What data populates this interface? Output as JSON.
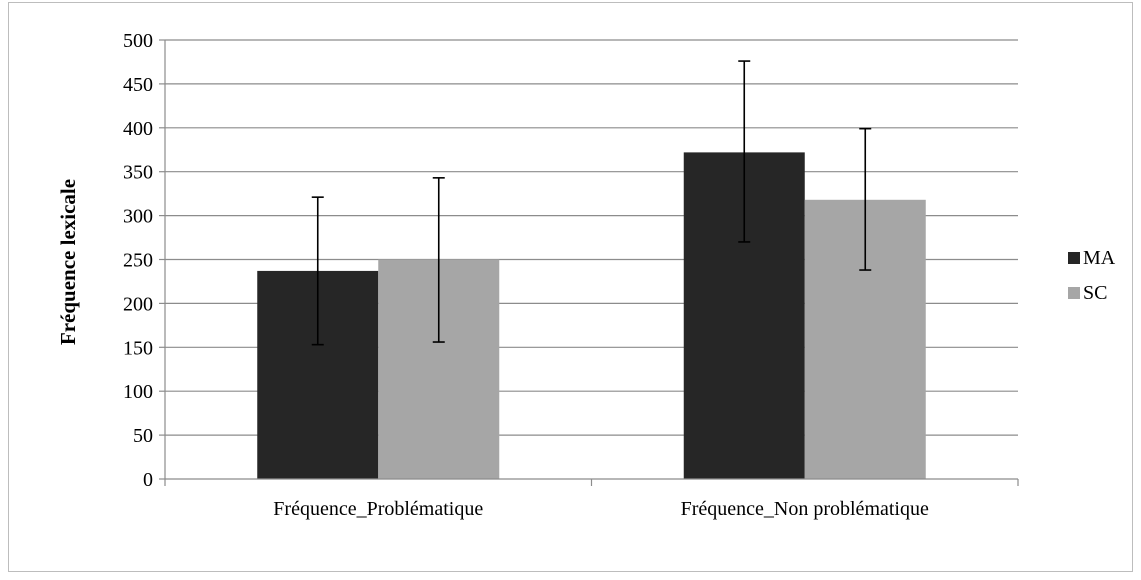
{
  "chart_data": {
    "type": "bar",
    "ylabel": "Fréquence lexicale",
    "xlabel": "",
    "ylim": [
      0,
      500
    ],
    "yticks": [
      0,
      50,
      100,
      150,
      200,
      250,
      300,
      350,
      400,
      450,
      500
    ],
    "grid": true,
    "legend_position": "right",
    "categories": [
      "Fréquence_Problématique",
      "Fréquence_Non problématique"
    ],
    "series": [
      {
        "name": "MA",
        "color": "#262626",
        "values": [
          237,
          372
        ],
        "error_low": [
          153,
          270
        ],
        "error_high": [
          321,
          476
        ]
      },
      {
        "name": "SC",
        "color": "#a6a6a6",
        "values": [
          250,
          318
        ],
        "error_low": [
          156,
          238
        ],
        "error_high": [
          343,
          399
        ]
      }
    ]
  }
}
